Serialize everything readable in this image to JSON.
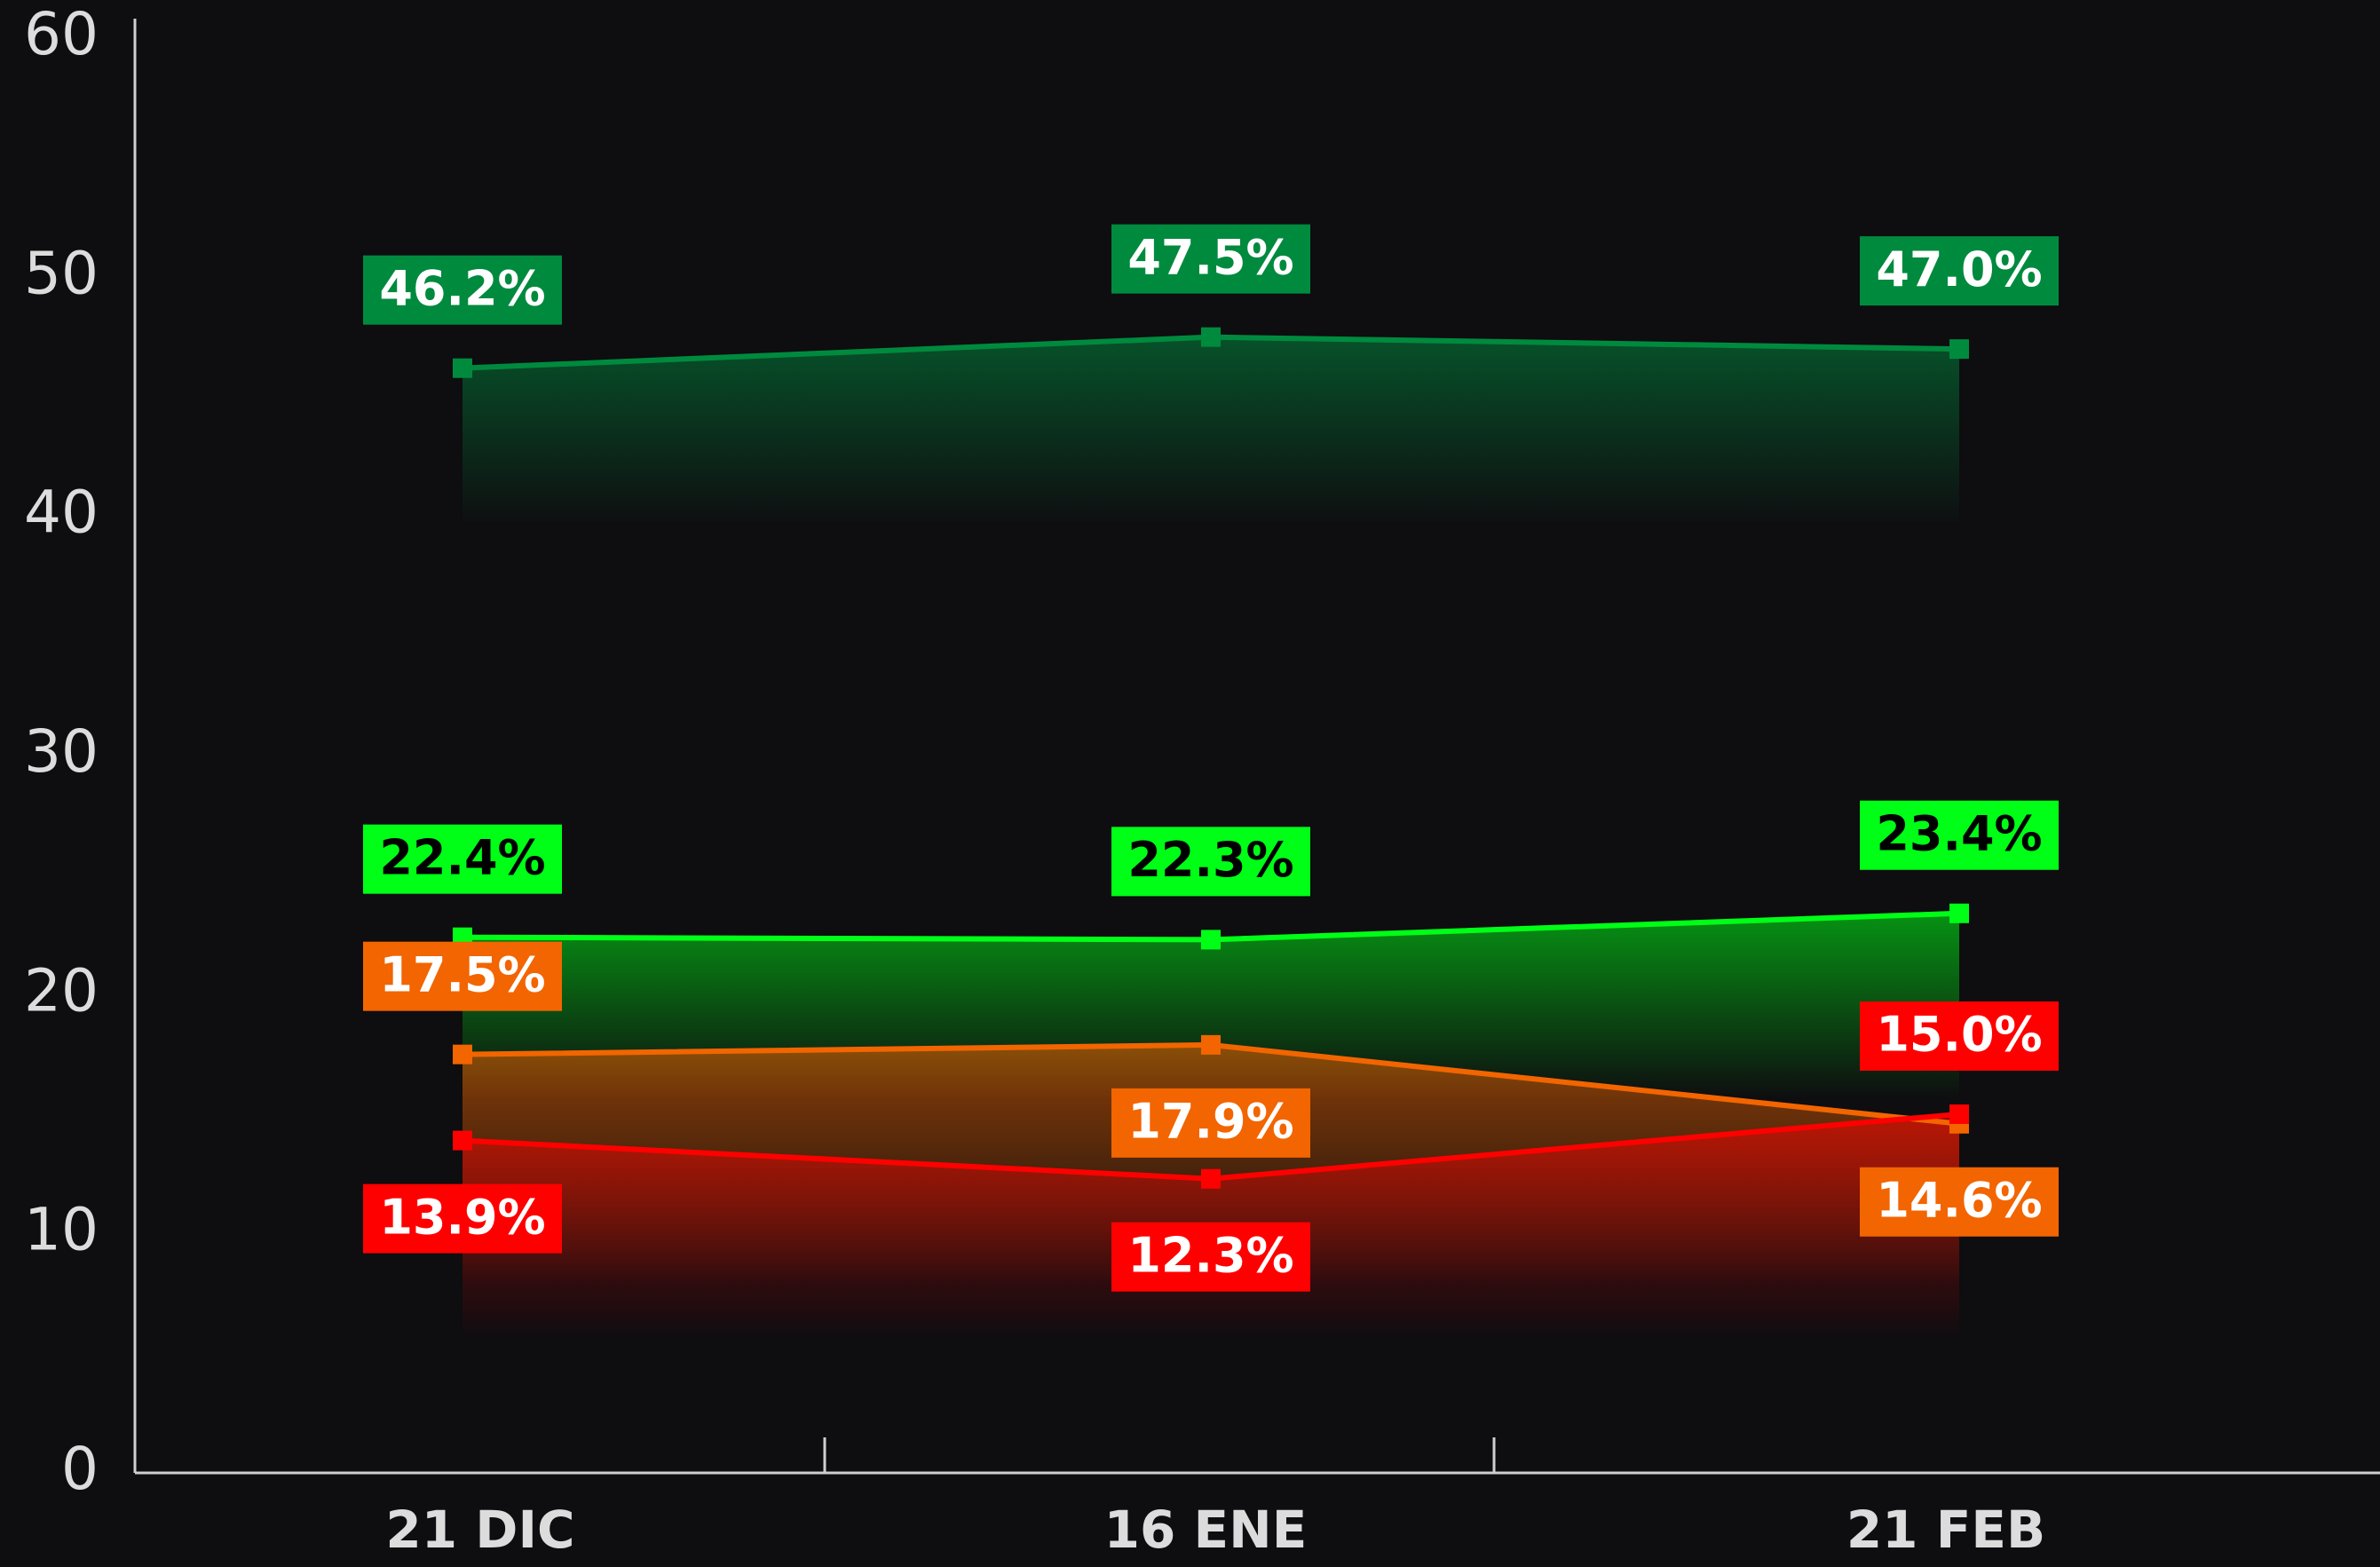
{
  "chart_data": {
    "type": "line",
    "categories": [
      "21 DIC",
      "16 ENE",
      "21 FEB"
    ],
    "series": [
      {
        "color": "#008a3e",
        "values": [
          46.2,
          47.5,
          47.0
        ],
        "value_labels": [
          "46.2%",
          "47.5%",
          "47.0%"
        ]
      },
      {
        "color": "#00ff16",
        "values": [
          22.4,
          22.3,
          23.4
        ],
        "value_labels": [
          "22.4%",
          "22.3%",
          "23.4%"
        ]
      },
      {
        "color": "#f26500",
        "values": [
          17.5,
          17.9,
          14.6
        ],
        "value_labels": [
          "17.5%",
          "17.9%",
          "14.6%"
        ]
      },
      {
        "color": "#ff0000",
        "values": [
          13.9,
          12.3,
          15.0
        ],
        "value_labels": [
          "13.9%",
          "12.3%",
          "15.0%"
        ]
      }
    ],
    "ylim": [
      0,
      60
    ],
    "yticks": [
      0,
      10,
      20,
      30,
      40,
      50,
      60
    ],
    "grid": false
  }
}
